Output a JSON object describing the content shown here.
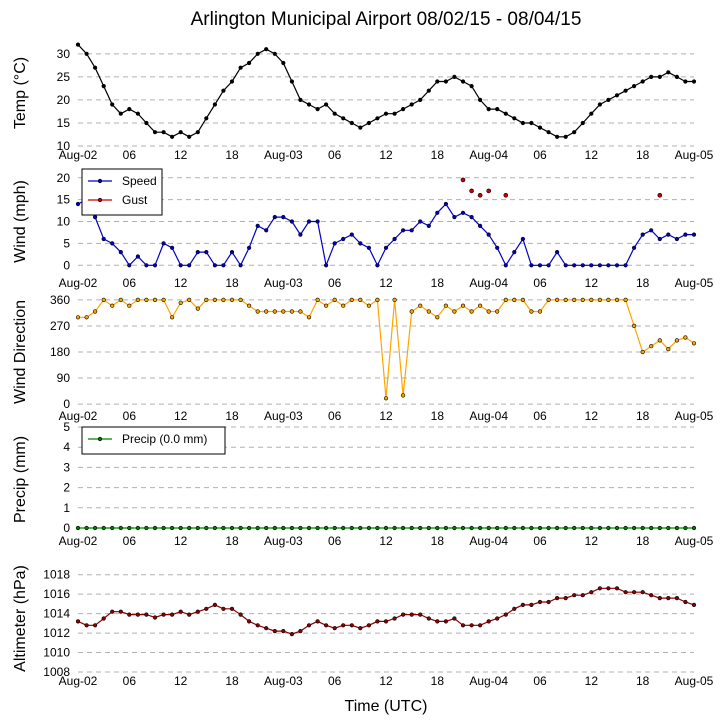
{
  "title": "Arlington Municipal Airport 08/02/15 - 08/04/15",
  "x_axis_label": "Time (UTC)",
  "x_ticks": [
    "Aug-02",
    "06",
    "12",
    "18",
    "Aug-03",
    "06",
    "12",
    "18",
    "Aug-04",
    "06",
    "12",
    "18",
    "Aug-05"
  ],
  "chart_data": [
    {
      "type": "line",
      "ylabel": "Temp ($^\\circ$C)",
      "ylabel_display": "Temp (°C)",
      "ylim": [
        10,
        33
      ],
      "yticks": [
        10,
        15,
        20,
        25,
        30
      ],
      "x_unit": "hours since Aug-02 00 UTC",
      "series": [
        {
          "name": "",
          "color": "#000000",
          "x": [
            0,
            1,
            2,
            3,
            4,
            5,
            6,
            7,
            8,
            9,
            10,
            11,
            12,
            13,
            14,
            15,
            16,
            17,
            18,
            19,
            20,
            21,
            22,
            23,
            24,
            25,
            26,
            27,
            28,
            29,
            30,
            31,
            32,
            33,
            34,
            35,
            36,
            37,
            38,
            39,
            40,
            41,
            42,
            43,
            44,
            45,
            46,
            47,
            48,
            49,
            50,
            51,
            52,
            53,
            54,
            55,
            56,
            57,
            58,
            59,
            60,
            61,
            62,
            63,
            64,
            65,
            66,
            67,
            68,
            69,
            70,
            71,
            72
          ],
          "y": [
            32,
            30,
            27,
            23,
            19,
            17,
            18,
            17,
            15,
            13,
            13,
            12,
            13,
            12,
            13,
            16,
            19,
            22,
            24,
            27,
            28,
            30,
            31,
            30,
            28,
            24,
            20,
            19,
            18,
            19,
            17,
            16,
            15,
            14,
            15,
            16,
            17,
            17,
            18,
            19,
            20,
            22,
            24,
            24,
            25,
            24,
            23,
            20,
            18,
            18,
            17,
            16,
            15,
            15,
            14,
            13,
            12,
            12,
            13,
            15,
            17,
            19,
            20,
            21,
            22,
            23,
            24,
            25,
            25,
            26,
            25,
            24,
            24
          ]
        }
      ]
    },
    {
      "type": "line",
      "ylabel": "Wind (mph)",
      "ylim": [
        -2,
        22
      ],
      "yticks": [
        0,
        5,
        10,
        15,
        20
      ],
      "legend": "top-left",
      "series": [
        {
          "name": "Speed",
          "color": "#0000c8",
          "x": [
            0,
            1,
            2,
            3,
            4,
            5,
            6,
            7,
            8,
            9,
            10,
            11,
            12,
            13,
            14,
            15,
            16,
            17,
            18,
            19,
            20,
            21,
            22,
            23,
            24,
            25,
            26,
            27,
            28,
            29,
            30,
            31,
            32,
            33,
            34,
            35,
            36,
            37,
            38,
            39,
            40,
            41,
            42,
            43,
            44,
            45,
            46,
            47,
            48,
            49,
            50,
            51,
            52,
            53,
            54,
            55,
            56,
            57,
            58,
            59,
            60,
            61,
            62,
            63,
            64,
            65,
            66,
            67,
            68,
            69,
            70,
            71,
            72
          ],
          "y": [
            14,
            15,
            11,
            6,
            5,
            3,
            0,
            2,
            0,
            0,
            5,
            4,
            0,
            0,
            3,
            3,
            0,
            0,
            3,
            0,
            4,
            9,
            8,
            11,
            11,
            10,
            7,
            10,
            10,
            0,
            5,
            6,
            7,
            5,
            4,
            0,
            4,
            6,
            8,
            8,
            10,
            9,
            12,
            14,
            11,
            12,
            11,
            9,
            7,
            4,
            0,
            3,
            6,
            0,
            0,
            0,
            3,
            0,
            0,
            0,
            0,
            0,
            0,
            0,
            0,
            4,
            7,
            8,
            6,
            7,
            6,
            7,
            7
          ]
        },
        {
          "name": "Gust",
          "color": "#c80000",
          "x": [
            45,
            46,
            47,
            48,
            50,
            68
          ],
          "y": [
            19.5,
            17,
            16,
            17,
            16,
            16
          ]
        }
      ]
    },
    {
      "type": "line",
      "ylabel": "Wind Direction",
      "ylim": [
        -10,
        370
      ],
      "yticks": [
        0,
        90,
        180,
        270,
        360
      ],
      "series": [
        {
          "name": "",
          "color": "#ffa500",
          "x": [
            0,
            1,
            2,
            3,
            4,
            5,
            6,
            7,
            8,
            9,
            10,
            11,
            12,
            13,
            14,
            15,
            16,
            17,
            18,
            19,
            20,
            21,
            22,
            23,
            24,
            25,
            26,
            27,
            28,
            29,
            30,
            31,
            32,
            33,
            34,
            35,
            36,
            37,
            38,
            39,
            40,
            41,
            42,
            43,
            44,
            45,
            46,
            47,
            48,
            49,
            50,
            51,
            52,
            53,
            54,
            55,
            56,
            57,
            58,
            59,
            60,
            61,
            62,
            63,
            64,
            65,
            66,
            67,
            68,
            69,
            70,
            71,
            72
          ],
          "y": [
            300,
            300,
            320,
            360,
            340,
            360,
            340,
            360,
            360,
            360,
            360,
            300,
            350,
            360,
            330,
            360,
            360,
            360,
            360,
            360,
            340,
            320,
            320,
            320,
            320,
            320,
            320,
            300,
            360,
            340,
            360,
            340,
            360,
            360,
            340,
            360,
            20,
            360,
            30,
            320,
            340,
            320,
            300,
            340,
            320,
            340,
            320,
            340,
            320,
            320,
            360,
            360,
            360,
            320,
            320,
            360,
            360,
            360,
            360,
            360,
            360,
            360,
            360,
            360,
            360,
            270,
            180,
            200,
            220,
            190,
            220,
            230,
            210
          ]
        }
      ]
    },
    {
      "type": "line",
      "ylabel": "Precip (mm)",
      "ylim": [
        -0.2,
        5
      ],
      "yticks": [
        0,
        1,
        2,
        3,
        4,
        5
      ],
      "legend": "top-left",
      "series": [
        {
          "name": "Precip (0.0 mm)",
          "color": "#008000",
          "x": [
            0,
            1,
            2,
            3,
            4,
            5,
            6,
            7,
            8,
            9,
            10,
            11,
            12,
            13,
            14,
            15,
            16,
            17,
            18,
            19,
            20,
            21,
            22,
            23,
            24,
            25,
            26,
            27,
            28,
            29,
            30,
            31,
            32,
            33,
            34,
            35,
            36,
            37,
            38,
            39,
            40,
            41,
            42,
            43,
            44,
            45,
            46,
            47,
            48,
            49,
            50,
            51,
            52,
            53,
            54,
            55,
            56,
            57,
            58,
            59,
            60,
            61,
            62,
            63,
            64,
            65,
            66,
            67,
            68,
            69,
            70,
            71,
            72
          ],
          "y": [
            0,
            0,
            0,
            0,
            0,
            0,
            0,
            0,
            0,
            0,
            0,
            0,
            0,
            0,
            0,
            0,
            0,
            0,
            0,
            0,
            0,
            0,
            0,
            0,
            0,
            0,
            0,
            0,
            0,
            0,
            0,
            0,
            0,
            0,
            0,
            0,
            0,
            0,
            0,
            0,
            0,
            0,
            0,
            0,
            0,
            0,
            0,
            0,
            0,
            0,
            0,
            0,
            0,
            0,
            0,
            0,
            0,
            0,
            0,
            0,
            0,
            0,
            0,
            0,
            0,
            0,
            0,
            0,
            0,
            0,
            0,
            0,
            0
          ]
        }
      ]
    },
    {
      "type": "line",
      "ylabel": "Altimeter (hPa)",
      "ylim": [
        1008,
        1019
      ],
      "yticks": [
        1008,
        1010,
        1012,
        1014,
        1016,
        1018
      ],
      "series": [
        {
          "name": "",
          "color": "#8b0000",
          "x": [
            0,
            1,
            2,
            3,
            4,
            5,
            6,
            7,
            8,
            9,
            10,
            11,
            12,
            13,
            14,
            15,
            16,
            17,
            18,
            19,
            20,
            21,
            22,
            23,
            24,
            25,
            26,
            27,
            28,
            29,
            30,
            31,
            32,
            33,
            34,
            35,
            36,
            37,
            38,
            39,
            40,
            41,
            42,
            43,
            44,
            45,
            46,
            47,
            48,
            49,
            50,
            51,
            52,
            53,
            54,
            55,
            56,
            57,
            58,
            59,
            60,
            61,
            62,
            63,
            64,
            65,
            66,
            67,
            68,
            69,
            70,
            71,
            72
          ],
          "y": [
            1013.2,
            1012.8,
            1012.8,
            1013.5,
            1014.2,
            1014.2,
            1013.9,
            1013.9,
            1013.9,
            1013.6,
            1013.9,
            1013.9,
            1014.2,
            1013.9,
            1014.2,
            1014.5,
            1014.9,
            1014.5,
            1014.5,
            1013.9,
            1013.2,
            1012.8,
            1012.5,
            1012.2,
            1012.2,
            1011.9,
            1012.2,
            1012.8,
            1013.2,
            1012.8,
            1012.5,
            1012.8,
            1012.8,
            1012.5,
            1012.8,
            1013.2,
            1013.2,
            1013.5,
            1013.9,
            1013.9,
            1013.9,
            1013.5,
            1013.2,
            1013.2,
            1013.5,
            1012.8,
            1012.8,
            1012.8,
            1013.2,
            1013.5,
            1013.9,
            1014.5,
            1014.9,
            1014.9,
            1015.2,
            1015.2,
            1015.6,
            1015.6,
            1015.9,
            1015.9,
            1016.2,
            1016.6,
            1016.6,
            1016.6,
            1016.2,
            1016.2,
            1016.2,
            1015.9,
            1015.6,
            1015.6,
            1015.6,
            1015.2,
            1014.9
          ]
        }
      ]
    }
  ]
}
